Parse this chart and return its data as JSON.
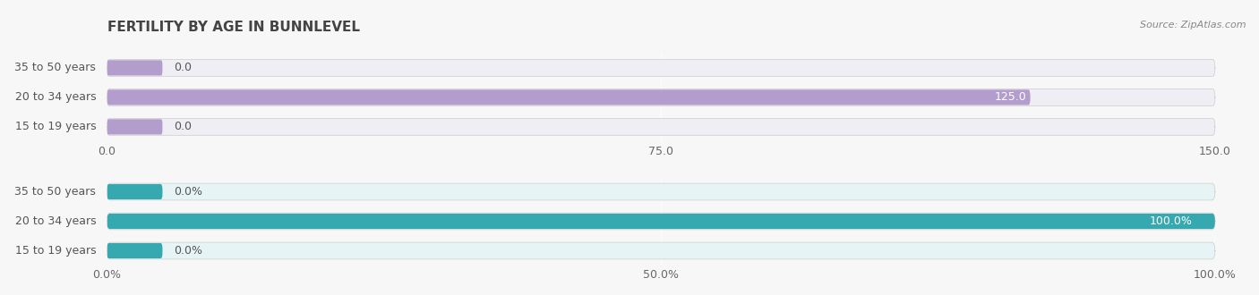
{
  "title": "FERTILITY BY AGE IN BUNNLEVEL",
  "source": "Source: ZipAtlas.com",
  "top_chart": {
    "categories": [
      "15 to 19 years",
      "20 to 34 years",
      "35 to 50 years"
    ],
    "values": [
      0.0,
      125.0,
      0.0
    ],
    "xlim": [
      0,
      150
    ],
    "xticks": [
      0.0,
      75.0,
      150.0
    ],
    "bar_color": "#b39dcc",
    "bar_bg_color": "#f0eef5",
    "bar_height": 0.55,
    "label_color": "#666666"
  },
  "bottom_chart": {
    "categories": [
      "15 to 19 years",
      "20 to 34 years",
      "35 to 50 years"
    ],
    "values": [
      0.0,
      100.0,
      0.0
    ],
    "xlim": [
      0,
      100
    ],
    "xticks": [
      0.0,
      50.0,
      100.0
    ],
    "xtick_labels": [
      "0.0%",
      "50.0%",
      "100.0%"
    ],
    "bar_color": "#36a8b0",
    "bar_bg_color": "#e6f4f5",
    "bar_height": 0.55,
    "label_color": "#666666"
  },
  "title_color": "#444444",
  "source_color": "#888888",
  "title_fontsize": 11,
  "tick_fontsize": 9,
  "label_fontsize": 9,
  "value_fontsize": 9,
  "bg_color": "#f7f7f7"
}
